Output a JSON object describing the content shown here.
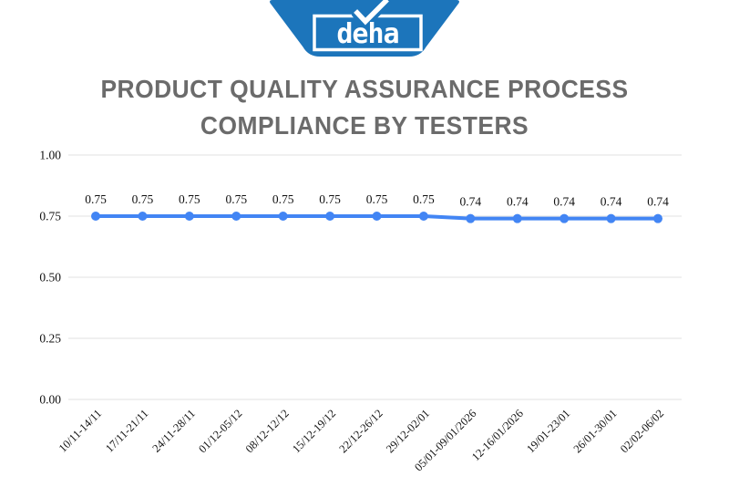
{
  "logo": {
    "text": "deha",
    "brand_color": "#1c75bb",
    "check_icon": "checkmark"
  },
  "chart_data": {
    "type": "line",
    "title": "PRODUCT QUALITY ASSURANCE PROCESS COMPLIANCE BY TESTERS",
    "categories": [
      "10/11-14/11",
      "17/11-21/11",
      "24/11-28/11",
      "01/12-05/12",
      "08/12-12/12",
      "15/12-19/12",
      "22/12-26/12",
      "29/12-02/01",
      "05/01-09/01/2026",
      "12-16/01/2026",
      "19/01-23/01",
      "26/01-30/01",
      "02/02-06/02"
    ],
    "values": [
      0.75,
      0.75,
      0.75,
      0.75,
      0.75,
      0.75,
      0.75,
      0.75,
      0.74,
      0.74,
      0.74,
      0.74,
      0.74
    ],
    "data_labels": [
      "0.75",
      "0.75",
      "0.75",
      "0.75",
      "0.75",
      "0.75",
      "0.75",
      "0.75",
      "0.74",
      "0.74",
      "0.74",
      "0.74",
      "0.74"
    ],
    "xlabel": "",
    "ylabel": "",
    "ylim": [
      0,
      1
    ],
    "yticks": [
      0.0,
      0.25,
      0.5,
      0.75,
      1.0
    ],
    "ytick_labels": [
      "0.00",
      "0.25",
      "0.50",
      "0.75",
      "1.00"
    ],
    "grid": true,
    "legend": "none",
    "line_color": "#4285f4",
    "grid_color": "#e2e2e2",
    "label_color": "#111111",
    "title_color": "#6b6b6b"
  }
}
